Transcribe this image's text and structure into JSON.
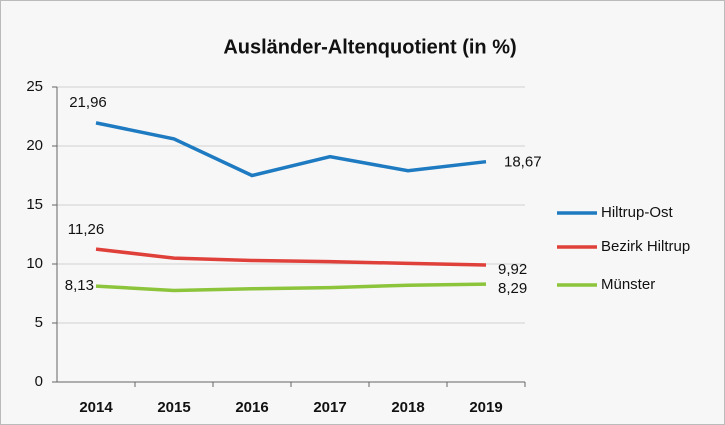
{
  "chart_data": {
    "type": "line",
    "title": "Ausländer-Altenquotient (in %)",
    "categories": [
      "2014",
      "2015",
      "2016",
      "2017",
      "2018",
      "2019"
    ],
    "series": [
      {
        "name": "Hiltrup-Ost",
        "color": "#1f7bc1",
        "values": [
          21.96,
          20.6,
          17.5,
          19.1,
          17.9,
          18.67
        ],
        "value_labels": [
          "21,96",
          null,
          null,
          null,
          null,
          "18,67"
        ]
      },
      {
        "name": "Bezirk Hiltrup",
        "color": "#e0403a",
        "values": [
          11.26,
          10.5,
          10.3,
          10.2,
          10.05,
          9.92
        ],
        "value_labels": [
          "11,26",
          null,
          null,
          null,
          null,
          "9,92"
        ]
      },
      {
        "name": "Münster",
        "color": "#8cc43c",
        "values": [
          8.13,
          7.75,
          7.9,
          8.0,
          8.2,
          8.29
        ],
        "value_labels": [
          "8,13",
          null,
          null,
          null,
          null,
          "8,29"
        ]
      }
    ],
    "ylim": [
      0,
      25
    ],
    "yticks": [
      0,
      5,
      10,
      15,
      20,
      25
    ],
    "grid": true,
    "legend": "right"
  }
}
